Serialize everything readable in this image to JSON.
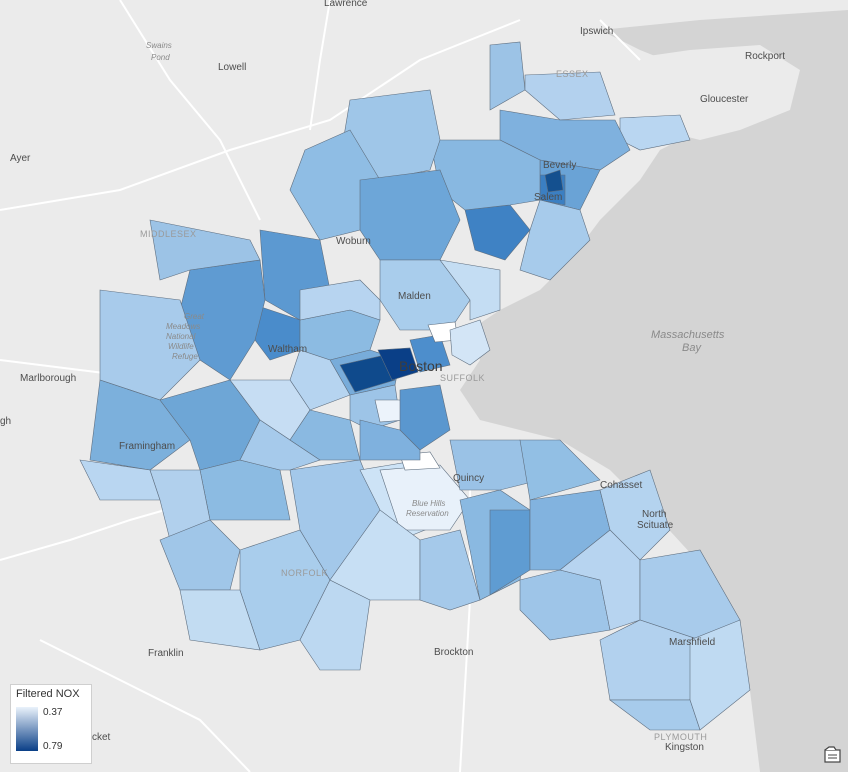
{
  "map": {
    "places": [
      {
        "id": "lawrence",
        "label": "Lawrence"
      },
      {
        "id": "ipswich",
        "label": "Ipswich"
      },
      {
        "id": "rockport",
        "label": "Rockport"
      },
      {
        "id": "gloucester",
        "label": "Gloucester"
      },
      {
        "id": "lowell",
        "label": "Lowell"
      },
      {
        "id": "ayer",
        "label": "Ayer"
      },
      {
        "id": "beverly",
        "label": "Beverly"
      },
      {
        "id": "salem",
        "label": "Salem"
      },
      {
        "id": "woburn",
        "label": "Woburn"
      },
      {
        "id": "malden",
        "label": "Malden"
      },
      {
        "id": "waltham",
        "label": "Waltham"
      },
      {
        "id": "boston",
        "label": "Boston"
      },
      {
        "id": "marlborough",
        "label": "Marlborough"
      },
      {
        "id": "framingham",
        "label": "Framingham"
      },
      {
        "id": "quincy",
        "label": "Quincy"
      },
      {
        "id": "cohasset",
        "label": "Cohasset"
      },
      {
        "id": "north_scituate_1",
        "label": "North"
      },
      {
        "id": "north_scituate_2",
        "label": "Scituate"
      },
      {
        "id": "franklin",
        "label": "Franklin"
      },
      {
        "id": "brockton",
        "label": "Brockton"
      },
      {
        "id": "marshfield",
        "label": "Marshfield"
      },
      {
        "id": "kingston",
        "label": "Kingston"
      },
      {
        "id": "edge_h",
        "label": "gh"
      },
      {
        "id": "edge_cket",
        "label": "cket"
      }
    ],
    "regions": [
      {
        "id": "essex",
        "label": "ESSEX"
      },
      {
        "id": "middlesex",
        "label": "MIDDLESEX"
      },
      {
        "id": "suffolk",
        "label": "SUFFOLK"
      },
      {
        "id": "norfolk",
        "label": "NORFOLK"
      },
      {
        "id": "plymouth",
        "label": "PLYMOUTH"
      }
    ],
    "water": [
      {
        "id": "bay1",
        "label": "Massachusetts"
      },
      {
        "id": "bay2",
        "label": "Bay"
      },
      {
        "id": "swains1",
        "label": "Swains"
      },
      {
        "id": "swains2",
        "label": "Pond"
      }
    ],
    "parks": [
      {
        "id": "gm1",
        "label": "Great"
      },
      {
        "id": "gm2",
        "label": "Meadows"
      },
      {
        "id": "gm3",
        "label": "National"
      },
      {
        "id": "gm4",
        "label": "Wildlife"
      },
      {
        "id": "gm5",
        "label": "Refuge"
      },
      {
        "id": "bh1",
        "label": "Blue Hills"
      },
      {
        "id": "bh2",
        "label": "Reservation"
      }
    ],
    "colors": {
      "water": "#d4d4d4",
      "land": "#ebebeb",
      "low": "#eaf2fb",
      "mid": "#6ea6d6",
      "high": "#0a3f87"
    }
  },
  "legend": {
    "title": "Filtered NOX",
    "max_label": "0.37",
    "min_label": "0.79"
  },
  "toolbar": {
    "layers_icon": "layers-icon"
  }
}
